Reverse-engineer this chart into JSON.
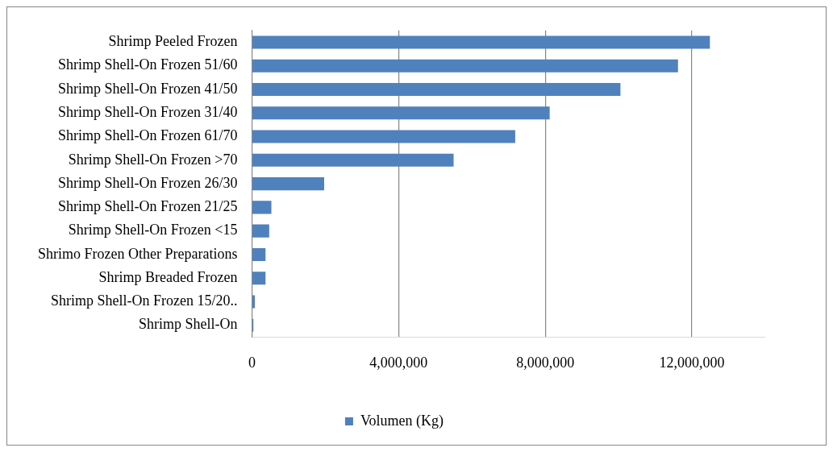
{
  "chart_data": {
    "type": "bar",
    "orientation": "horizontal",
    "categories": [
      "Shrimp Peeled Frozen",
      "Shrimp Shell-On Frozen 51/60",
      "Shrimp Shell-On Frozen 41/50",
      "Shrimp Shell-On Frozen 31/40",
      "Shrimp Shell-On Frozen 61/70",
      "Shrimp Shell-On Frozen >70",
      "Shrimp Shell-On Frozen 26/30",
      "Shrimp Shell-On Frozen 21/25",
      "Shrimp Shell-On Frozen <15",
      "Shrimo Frozen Other Preparations",
      "Shrimp Breaded Frozen",
      "Shrimp Shell-On Frozen 15/20..",
      "Shrimp Shell-On"
    ],
    "series": [
      {
        "name": "Volumen (Kg)",
        "color": "#4f81bd",
        "values": [
          12490000,
          11620000,
          10050000,
          8120000,
          7180000,
          5500000,
          1970000,
          530000,
          470000,
          370000,
          370000,
          80000,
          40000
        ]
      }
    ],
    "xlim": [
      0,
      14000000
    ],
    "xticks": [
      {
        "value": 0,
        "label": "0"
      },
      {
        "value": 4000000,
        "label": "4,000,000"
      },
      {
        "value": 8000000,
        "label": "8,000,000"
      },
      {
        "value": 12000000,
        "label": "12,000,000"
      }
    ],
    "grid": "x",
    "legend": "bottom"
  }
}
